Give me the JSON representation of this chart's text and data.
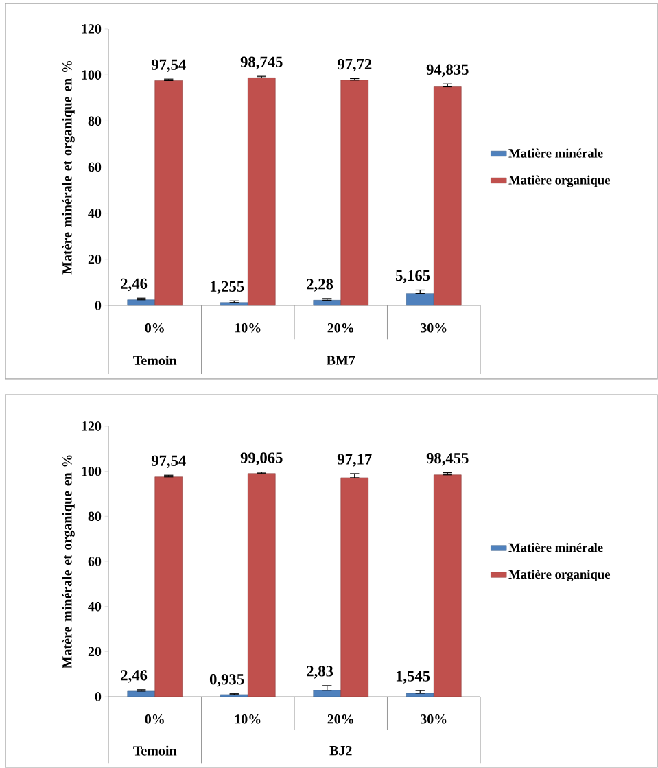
{
  "chart_data": [
    {
      "type": "bar",
      "ylabel": "Matère minérale et organique en %",
      "categories": [
        "0%",
        "10%",
        "20%",
        "30%"
      ],
      "series": [
        {
          "name": "Matière minérale",
          "color": "#4f81bd",
          "values": [
            2.46,
            1.255,
            2.28,
            5.165
          ],
          "errors": [
            [
              2.46,
              3.2
            ],
            [
              1.255,
              2.0
            ],
            [
              2.28,
              3.0
            ],
            [
              5.165,
              6.7
            ]
          ],
          "value_labels": [
            "2,46",
            "1,255",
            "2,28",
            "5,165"
          ]
        },
        {
          "name": "Matière organique",
          "color": "#c0504d",
          "values": [
            97.54,
            98.745,
            97.72,
            94.835
          ],
          "errors": [
            [
              97.54,
              98.2
            ],
            [
              98.745,
              99.4
            ],
            [
              97.72,
              98.4
            ],
            [
              94.835,
              96.1
            ]
          ],
          "value_labels": [
            "97,54",
            "98,745",
            "97,72",
            "94,835"
          ]
        }
      ],
      "ylim": [
        0,
        120
      ],
      "yticks": [
        0,
        20,
        40,
        60,
        80,
        100,
        120
      ],
      "legend": "right",
      "annotations": [
        "Temoin",
        "BM7"
      ]
    },
    {
      "type": "bar",
      "ylabel": "Matère minérale et organique en %",
      "categories": [
        "0%",
        "10%",
        "20%",
        "30%"
      ],
      "series": [
        {
          "name": "Matière minérale",
          "color": "#4f81bd",
          "values": [
            2.46,
            0.935,
            2.83,
            1.545
          ],
          "errors": [
            [
              2.46,
              3.1
            ],
            [
              0.935,
              1.3
            ],
            [
              2.83,
              4.9
            ],
            [
              1.545,
              2.7
            ]
          ],
          "value_labels": [
            "2,46",
            "0,935",
            "2,83",
            "1,545"
          ]
        },
        {
          "name": "Matière organique",
          "color": "#c0504d",
          "values": [
            97.54,
            99.065,
            97.17,
            98.455
          ],
          "errors": [
            [
              97.54,
              98.3
            ],
            [
              99.065,
              99.6
            ],
            [
              97.17,
              99.0
            ],
            [
              98.455,
              99.4
            ]
          ],
          "value_labels": [
            "97,54",
            "99,065",
            "97,17",
            "98,455"
          ]
        }
      ],
      "ylim": [
        0,
        120
      ],
      "yticks": [
        0,
        20,
        40,
        60,
        80,
        100,
        120
      ],
      "legend": "right",
      "annotations": [
        "Temoin",
        "BJ2"
      ]
    }
  ]
}
